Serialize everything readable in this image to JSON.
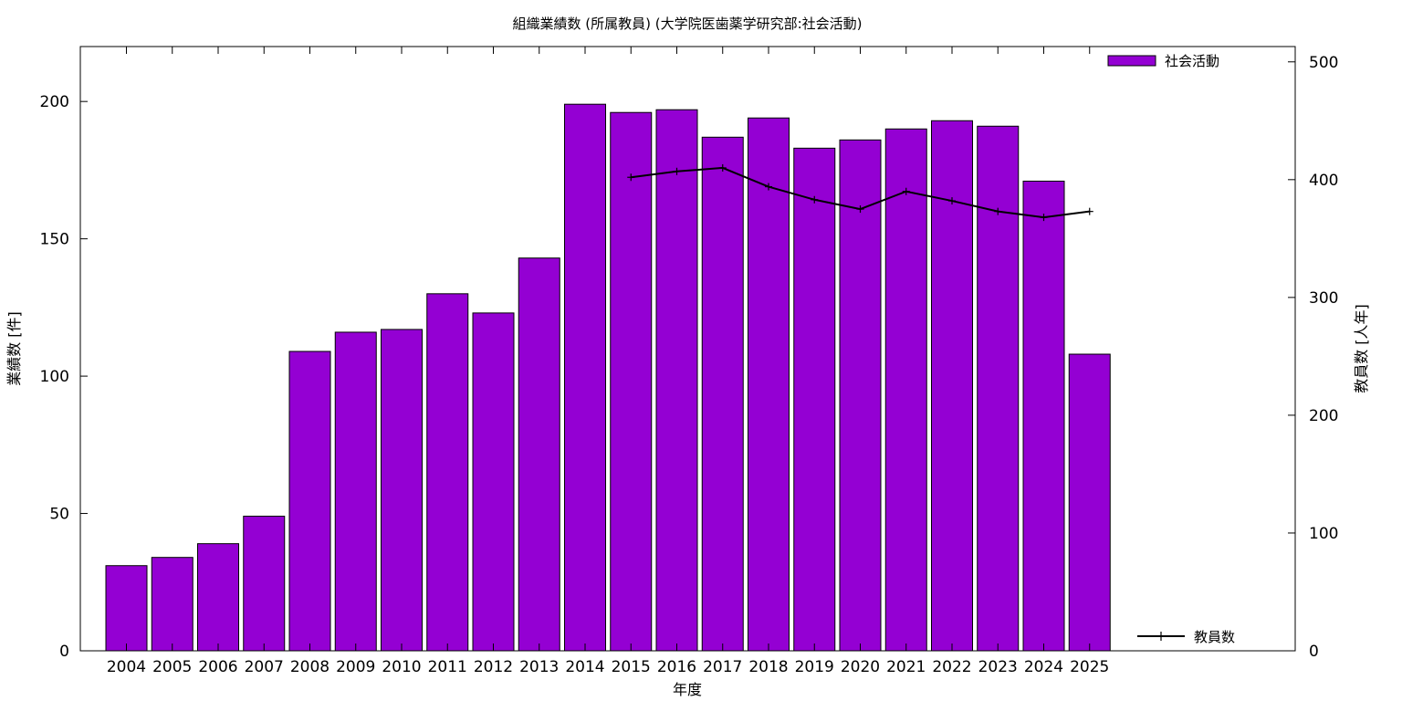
{
  "chart_data": {
    "type": "bar",
    "title": "組織業績数 (所属教員) (大学院医歯薬学研究部:社会活動)",
    "xlabel": "年度",
    "ylabel": "業績数 [件]",
    "y2label": "教員数 [人年]",
    "categories": [
      "2004",
      "2005",
      "2006",
      "2007",
      "2008",
      "2009",
      "2010",
      "2011",
      "2012",
      "2013",
      "2014",
      "2015",
      "2016",
      "2017",
      "2018",
      "2019",
      "2020",
      "2021",
      "2022",
      "2023",
      "2024",
      "2025"
    ],
    "series": [
      {
        "name": "社会活動",
        "kind": "bar",
        "axis": "left",
        "color": "#9400d3",
        "values": [
          31,
          34,
          39,
          49,
          109,
          116,
          117,
          130,
          123,
          143,
          199,
          196,
          197,
          187,
          194,
          183,
          186,
          190,
          193,
          191,
          171,
          108
        ]
      },
      {
        "name": "教員数",
        "kind": "line",
        "axis": "right",
        "color": "#000000",
        "values": [
          null,
          null,
          null,
          null,
          null,
          null,
          null,
          null,
          null,
          null,
          null,
          402,
          407,
          410,
          394,
          383,
          375,
          390,
          382,
          373,
          368,
          373
        ]
      }
    ],
    "ylim": [
      0,
      220
    ],
    "y2lim": [
      0,
      513
    ],
    "yticks": [
      0,
      50,
      100,
      150,
      200
    ],
    "y2ticks": [
      0,
      100,
      200,
      300,
      400,
      500
    ],
    "legend": [
      "top-right",
      "bottom-right"
    ],
    "grid": false
  }
}
